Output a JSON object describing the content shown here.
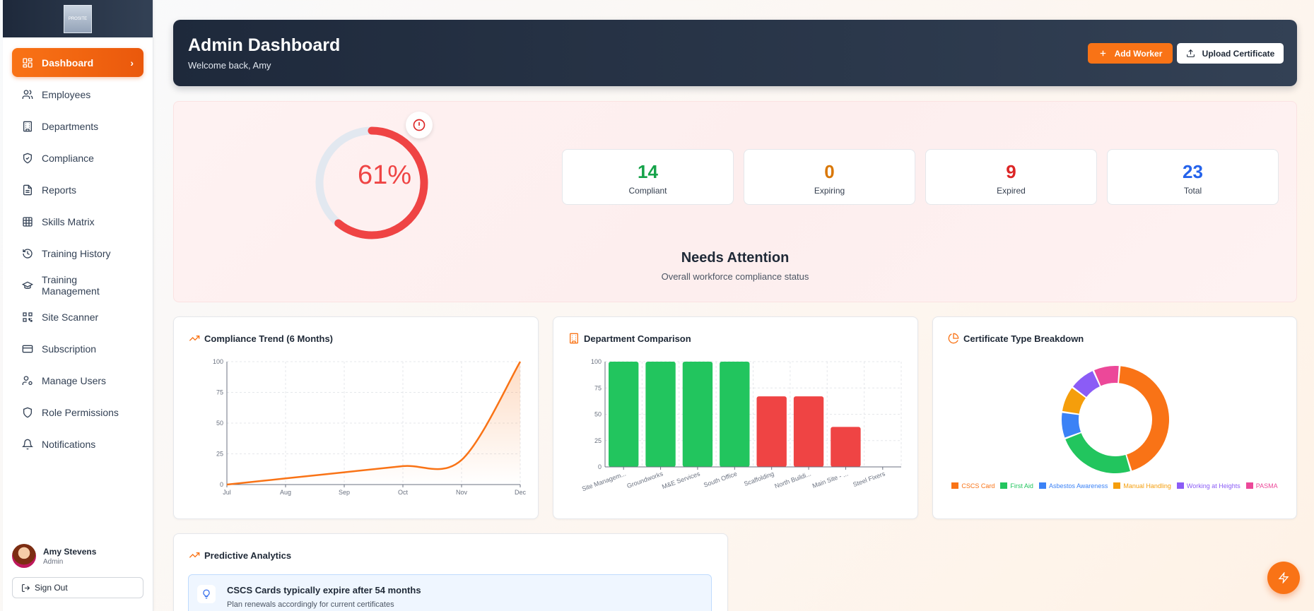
{
  "sidebar": {
    "logo_text": "PROSITE",
    "items": [
      {
        "label": "Dashboard",
        "icon": "dashboard-icon",
        "active": true
      },
      {
        "label": "Employees",
        "icon": "users-icon"
      },
      {
        "label": "Departments",
        "icon": "building-icon"
      },
      {
        "label": "Compliance",
        "icon": "shield-check-icon"
      },
      {
        "label": "Reports",
        "icon": "file-text-icon"
      },
      {
        "label": "Skills Matrix",
        "icon": "grid-icon"
      },
      {
        "label": "Training History",
        "icon": "history-icon"
      },
      {
        "label": "Training Management",
        "icon": "graduation-cap-icon"
      },
      {
        "label": "Site Scanner",
        "icon": "qr-code-icon"
      },
      {
        "label": "Subscription",
        "icon": "credit-card-icon"
      },
      {
        "label": "Manage Users",
        "icon": "user-cog-icon"
      },
      {
        "label": "Role Permissions",
        "icon": "shield-icon"
      },
      {
        "label": "Notifications",
        "icon": "bell-icon"
      }
    ],
    "user": {
      "name": "Amy Stevens",
      "role": "Admin"
    },
    "sign_out": "Sign Out"
  },
  "header": {
    "title": "Admin Dashboard",
    "subtitle": "Welcome back, Amy",
    "add_worker": "Add Worker",
    "upload_certificate": "Upload Certificate"
  },
  "status": {
    "percent_label": "61%",
    "percent_value": 61,
    "title": "Needs Attention",
    "subtitle": "Overall workforce compliance status",
    "stats": [
      {
        "value": "14",
        "label": "Compliant",
        "color": "#16a34a"
      },
      {
        "value": "0",
        "label": "Expiring",
        "color": "#d97706"
      },
      {
        "value": "9",
        "label": "Expired",
        "color": "#dc2626"
      },
      {
        "value": "23",
        "label": "Total",
        "color": "#2563eb"
      }
    ]
  },
  "trend": {
    "title": "Compliance Trend (6 Months)",
    "chart_data": {
      "type": "line",
      "x": [
        "Jul",
        "Aug",
        "Sep",
        "Oct",
        "Nov",
        "Dec"
      ],
      "values": [
        0,
        5,
        10,
        15,
        20,
        100
      ],
      "yticks": [
        0,
        25,
        50,
        75,
        100
      ],
      "ylim": [
        0,
        100
      ],
      "color": "#f97316"
    }
  },
  "departments": {
    "title": "Department Comparison",
    "chart_data": {
      "type": "bar",
      "categories": [
        "Site Managem...",
        "Groundworks",
        "M&E Services",
        "South Office",
        "Scaffolding",
        "North Buildi...",
        "Main Site - ...",
        "Steel Fixers"
      ],
      "values": [
        100,
        100,
        100,
        100,
        67,
        67,
        38,
        0
      ],
      "colors": [
        "#22c55e",
        "#22c55e",
        "#22c55e",
        "#22c55e",
        "#ef4444",
        "#ef4444",
        "#ef4444",
        "#ef4444"
      ],
      "yticks": [
        0,
        25,
        50,
        75,
        100
      ],
      "ylim": [
        0,
        100
      ]
    }
  },
  "certificates": {
    "title": "Certificate Type Breakdown",
    "chart_data": {
      "type": "pie",
      "series": [
        {
          "name": "CSCS Card",
          "value": 11,
          "color": "#f97316"
        },
        {
          "name": "First Aid",
          "value": 6,
          "color": "#22c55e"
        },
        {
          "name": "Asbestos Awareness",
          "value": 2,
          "color": "#3b82f6"
        },
        {
          "name": "Manual Handling",
          "value": 2,
          "color": "#f59e0b"
        },
        {
          "name": "Working at Heights",
          "value": 2,
          "color": "#8b5cf6"
        },
        {
          "name": "PASMA",
          "value": 2,
          "color": "#ec4899"
        }
      ]
    }
  },
  "predictive": {
    "title": "Predictive Analytics",
    "insight_title": "CSCS Cards typically expire after 54 months",
    "insight_text": "Plan renewals accordingly for current certificates"
  }
}
